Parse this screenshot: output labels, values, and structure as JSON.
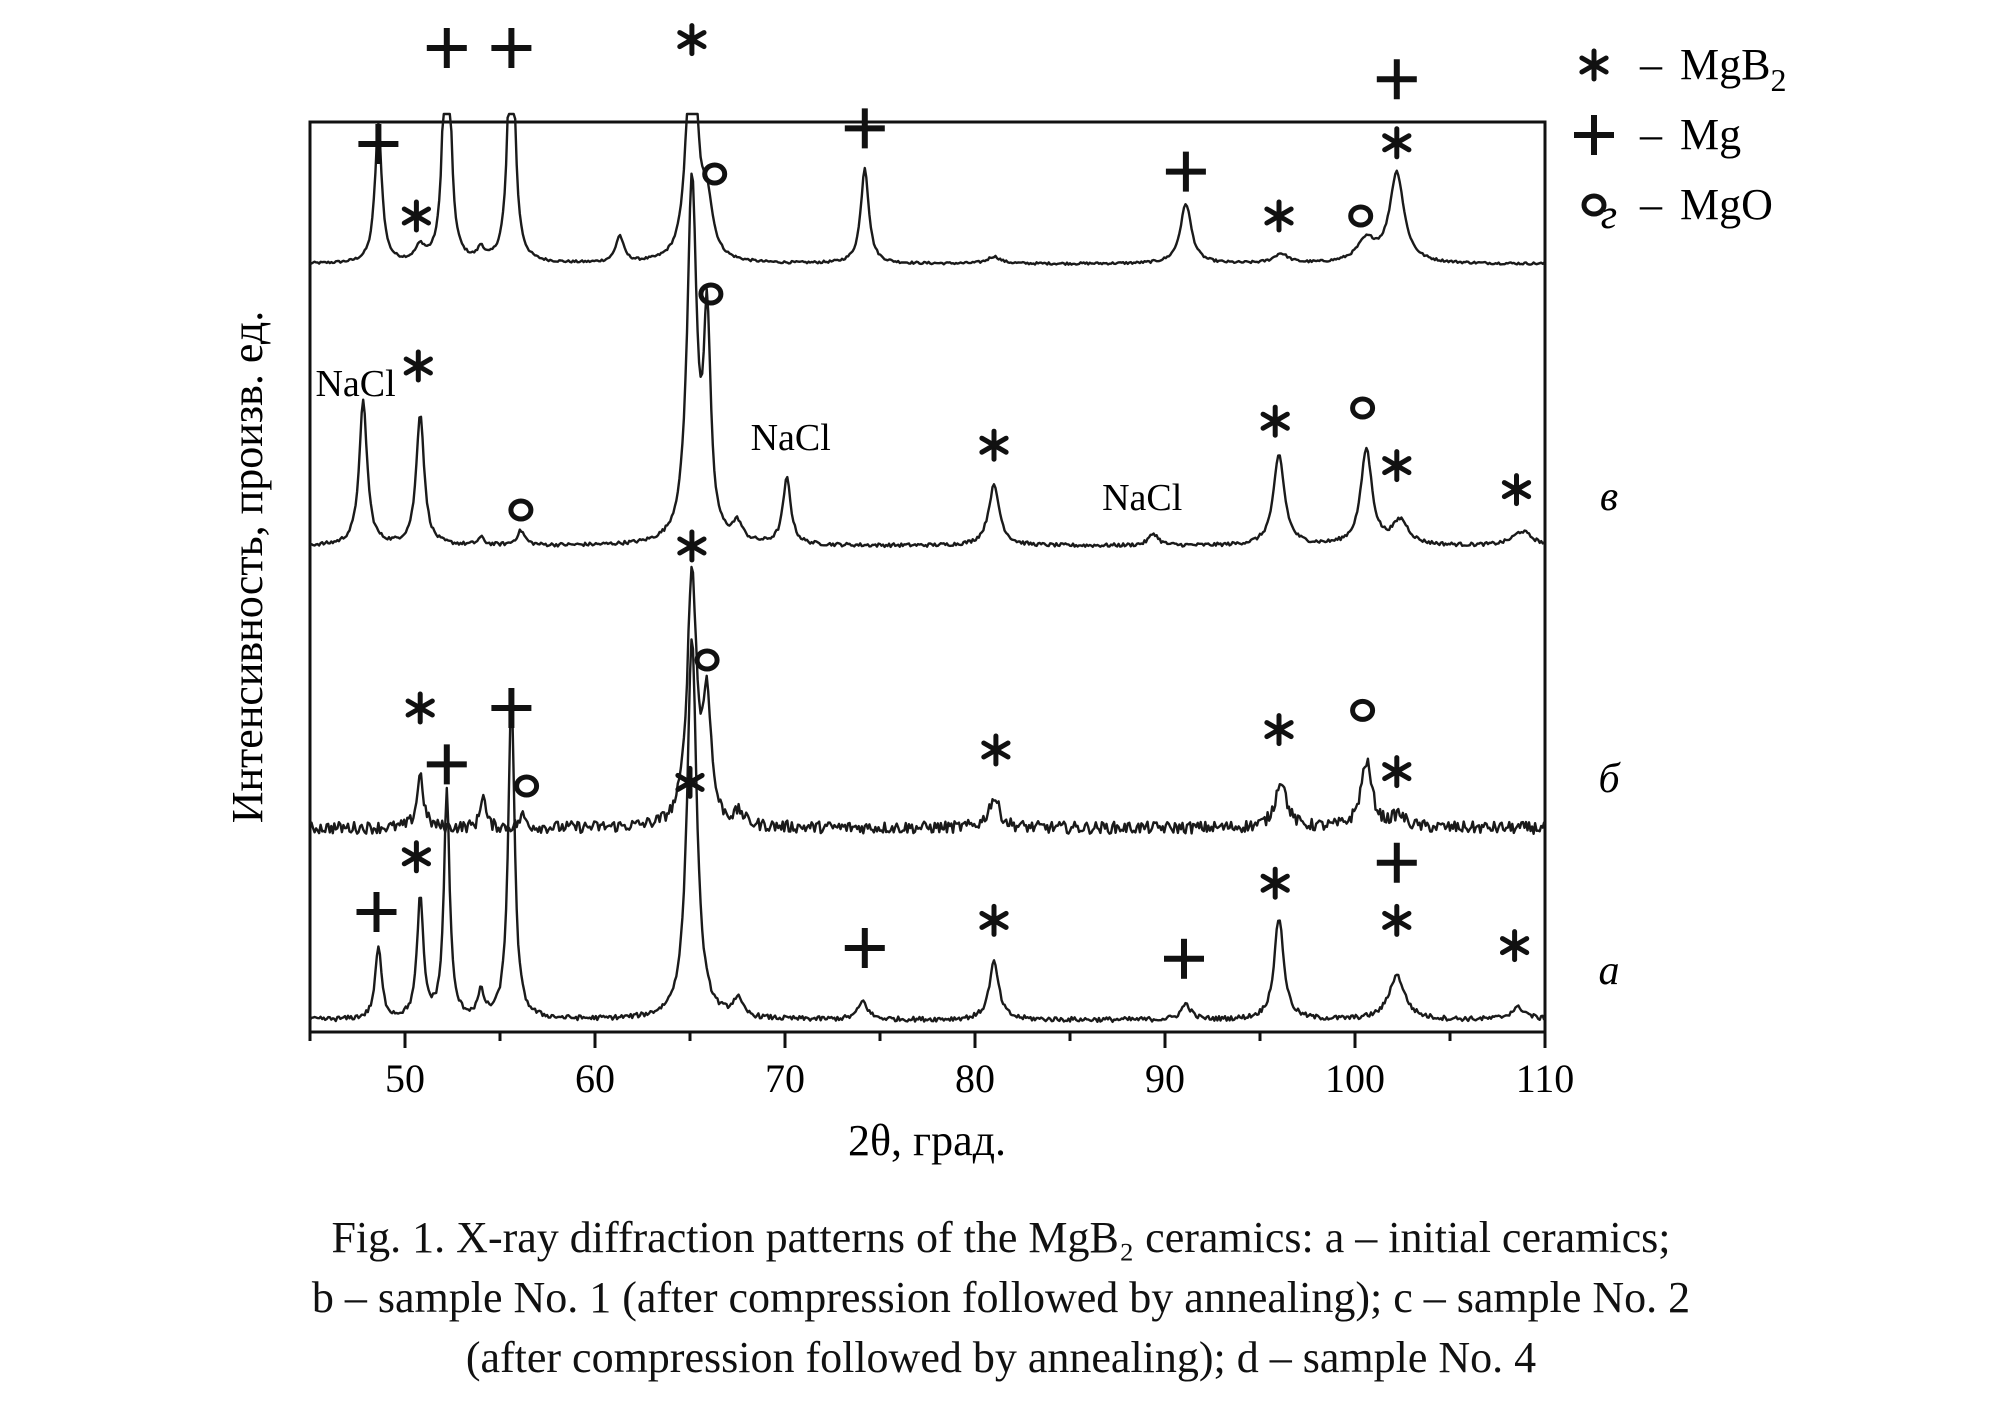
{
  "chart_data": {
    "type": "line",
    "title": "",
    "xlabel": "2θ, град.",
    "ylabel": "Интенсивность, произв. ед.",
    "xlim": [
      45,
      110
    ],
    "x_ticks": [
      50,
      60,
      70,
      80,
      90,
      100,
      110
    ],
    "y_ticks_shown": false,
    "grid": false,
    "legend": {
      "placement": "top-right, outside plot",
      "entries": [
        {
          "symbol": "*",
          "dash": "–",
          "label": "MgB",
          "sub": "2"
        },
        {
          "symbol": "+",
          "dash": "–",
          "label": "Mg",
          "sub": ""
        },
        {
          "symbol": "o",
          "dash": "–",
          "label": "MgO",
          "sub": ""
        }
      ]
    },
    "series": [
      {
        "curve_label": "г",
        "baseline": 0.63,
        "noise": 0.002,
        "peaks": [
          {
            "x": 48.6,
            "h": 0.115,
            "w": 0.22
          },
          {
            "x": 50.8,
            "h": 0.012,
            "w": 0.3
          },
          {
            "x": 52.2,
            "h": 0.3,
            "w": 0.18
          },
          {
            "x": 54.0,
            "h": 0.01,
            "w": 0.2
          },
          {
            "x": 55.6,
            "h": 0.24,
            "w": 0.2
          },
          {
            "x": 61.3,
            "h": 0.022,
            "w": 0.25
          },
          {
            "x": 65.1,
            "h": 0.245,
            "w": 0.28
          },
          {
            "x": 65.9,
            "h": 0.045,
            "w": 0.35
          },
          {
            "x": 74.2,
            "h": 0.08,
            "w": 0.25
          },
          {
            "x": 81.0,
            "h": 0.006,
            "w": 0.4
          },
          {
            "x": 91.1,
            "h": 0.05,
            "w": 0.35
          },
          {
            "x": 96.1,
            "h": 0.008,
            "w": 0.45
          },
          {
            "x": 100.6,
            "h": 0.018,
            "w": 0.6
          },
          {
            "x": 102.2,
            "h": 0.075,
            "w": 0.45
          }
        ],
        "annotations": [
          {
            "text": "+",
            "x": 48.6,
            "level": 0.1
          },
          {
            "text": "*",
            "x": 50.6,
            "level": 0.04
          },
          {
            "text": "+",
            "x": 52.2,
            "level": 0.18
          },
          {
            "text": "+",
            "x": 55.6,
            "level": 0.18
          },
          {
            "text": "*",
            "x": 65.1,
            "level": 0.187
          },
          {
            "text": "o",
            "x": 66.3,
            "level": 0.075
          },
          {
            "text": "+",
            "x": 74.2,
            "level": 0.113
          },
          {
            "text": "+",
            "x": 91.1,
            "level": 0.077
          },
          {
            "text": "*",
            "x": 96.0,
            "level": 0.04
          },
          {
            "text": "o",
            "x": 100.3,
            "level": 0.04
          },
          {
            "text": "*",
            "x": 102.2,
            "level": 0.101
          },
          {
            "text": "+",
            "x": 102.2,
            "level": 0.154
          }
        ]
      },
      {
        "curve_label": "в",
        "baseline": 0.395,
        "noise": 0.003,
        "peaks": [
          {
            "x": 47.8,
            "h": 0.12,
            "w": 0.25
          },
          {
            "x": 50.8,
            "h": 0.11,
            "w": 0.25
          },
          {
            "x": 54.0,
            "h": 0.006,
            "w": 0.2
          },
          {
            "x": 56.1,
            "h": 0.012,
            "w": 0.25
          },
          {
            "x": 65.1,
            "h": 0.3,
            "w": 0.3
          },
          {
            "x": 65.9,
            "h": 0.175,
            "w": 0.22
          },
          {
            "x": 67.5,
            "h": 0.015,
            "w": 0.3
          },
          {
            "x": 70.1,
            "h": 0.055,
            "w": 0.25
          },
          {
            "x": 81.0,
            "h": 0.05,
            "w": 0.35
          },
          {
            "x": 89.4,
            "h": 0.01,
            "w": 0.3
          },
          {
            "x": 96.0,
            "h": 0.075,
            "w": 0.35
          },
          {
            "x": 100.6,
            "h": 0.08,
            "w": 0.35
          },
          {
            "x": 102.4,
            "h": 0.02,
            "w": 0.5
          },
          {
            "x": 108.8,
            "h": 0.012,
            "w": 0.6
          }
        ],
        "annotations": [
          {
            "text": "NaCl",
            "x": 47.4,
            "level": 0.125
          },
          {
            "text": "*",
            "x": 50.7,
            "level": 0.15
          },
          {
            "text": "o",
            "x": 56.1,
            "level": 0.03
          },
          {
            "text": "*",
            "x": 65.1,
            "level": 0.0
          },
          {
            "text": "o",
            "x": 66.1,
            "level": 0.21
          },
          {
            "text": "NaCl",
            "x": 70.3,
            "level": 0.08
          },
          {
            "text": "*",
            "x": 81.0,
            "level": 0.084
          },
          {
            "text": "NaCl",
            "x": 88.8,
            "level": 0.03
          },
          {
            "text": "*",
            "x": 95.8,
            "level": 0.104
          },
          {
            "text": "o",
            "x": 100.4,
            "level": 0.115
          },
          {
            "text": "*",
            "x": 102.2,
            "level": 0.067
          },
          {
            "text": "*",
            "x": 108.5,
            "level": 0.047
          }
        ]
      },
      {
        "curve_label": "б",
        "baseline": 0.16,
        "noise": 0.01,
        "peaks": [
          {
            "x": 50.8,
            "h": 0.045,
            "w": 0.2
          },
          {
            "x": 54.1,
            "h": 0.03,
            "w": 0.15
          },
          {
            "x": 56.2,
            "h": 0.01,
            "w": 0.2
          },
          {
            "x": 65.1,
            "h": 0.21,
            "w": 0.3
          },
          {
            "x": 65.9,
            "h": 0.1,
            "w": 0.25
          },
          {
            "x": 67.6,
            "h": 0.01,
            "w": 0.3
          },
          {
            "x": 81.0,
            "h": 0.025,
            "w": 0.35
          },
          {
            "x": 96.1,
            "h": 0.04,
            "w": 0.35
          },
          {
            "x": 100.6,
            "h": 0.055,
            "w": 0.35
          },
          {
            "x": 102.3,
            "h": 0.01,
            "w": 0.4
          }
        ],
        "annotations": [
          {
            "text": "*",
            "x": 50.8,
            "level": 0.1
          },
          {
            "text": "o",
            "x": 56.4,
            "level": 0.035
          },
          {
            "text": "o",
            "x": 65.9,
            "level": 0.14
          },
          {
            "text": "*",
            "x": 81.1,
            "level": 0.065
          },
          {
            "text": "*",
            "x": 96.0,
            "level": 0.082
          },
          {
            "text": "o",
            "x": 100.4,
            "level": 0.098
          },
          {
            "text": "*",
            "x": 102.2,
            "level": 0.047
          }
        ]
      },
      {
        "curve_label": "а",
        "baseline": 0.0,
        "noise": 0.004,
        "peaks": [
          {
            "x": 48.6,
            "h": 0.06,
            "w": 0.2
          },
          {
            "x": 50.8,
            "h": 0.1,
            "w": 0.2
          },
          {
            "x": 52.2,
            "h": 0.19,
            "w": 0.18
          },
          {
            "x": 54.0,
            "h": 0.02,
            "w": 0.2
          },
          {
            "x": 55.6,
            "h": 0.27,
            "w": 0.2
          },
          {
            "x": 65.1,
            "h": 0.32,
            "w": 0.3
          },
          {
            "x": 67.5,
            "h": 0.015,
            "w": 0.3
          },
          {
            "x": 74.1,
            "h": 0.015,
            "w": 0.3
          },
          {
            "x": 81.0,
            "h": 0.048,
            "w": 0.3
          },
          {
            "x": 91.1,
            "h": 0.013,
            "w": 0.3
          },
          {
            "x": 96.0,
            "h": 0.085,
            "w": 0.3
          },
          {
            "x": 102.2,
            "h": 0.037,
            "w": 0.5
          },
          {
            "x": 108.6,
            "h": 0.01,
            "w": 0.5
          }
        ],
        "annotations": [
          {
            "text": "+",
            "x": 48.5,
            "level": 0.09
          },
          {
            "text": "*",
            "x": 50.6,
            "level": 0.136
          },
          {
            "text": "+",
            "x": 52.2,
            "level": 0.213
          },
          {
            "text": "+",
            "x": 55.6,
            "level": 0.26
          },
          {
            "text": "*",
            "x": 65.0,
            "level": 0.198
          },
          {
            "text": "+",
            "x": 74.2,
            "level": 0.06
          },
          {
            "text": "*",
            "x": 81.0,
            "level": 0.083
          },
          {
            "text": "+",
            "x": 91.0,
            "level": 0.051
          },
          {
            "text": "*",
            "x": 95.8,
            "level": 0.114
          },
          {
            "text": "*",
            "x": 102.2,
            "level": 0.083
          },
          {
            "text": "+",
            "x": 102.2,
            "level": 0.131
          },
          {
            "text": "*",
            "x": 108.4,
            "level": 0.062
          }
        ]
      }
    ]
  },
  "caption": {
    "lines": [
      "Fig. 1. X-ray diffraction patterns of the MgB₂ ceramics: a – initial ceramics;",
      "b – sample No. 1 (after compression followed by annealing); c – sample No. 2",
      "(after compression followed by annealing); d – sample No. 4"
    ]
  }
}
